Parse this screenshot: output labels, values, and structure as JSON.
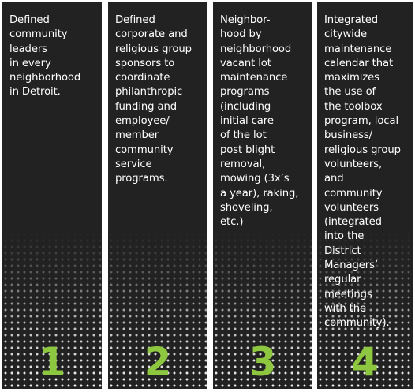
{
  "accent_color": "#8DC63F",
  "panels": [
    {
      "number": "1",
      "text": "Defined\ncommunity\nleaders\nin every\nneighborhood\nin Detroit."
    },
    {
      "number": "2",
      "text": "Defined\ncorporate and\nreligious group\nsponsors to\ncoordinate\nphilanthropic\nfunding and\nemployee/\nmember\ncommunity\nservice\nprograms."
    },
    {
      "number": "3",
      "text": "Neighbor-\nhood by\nneighborhood\nvacant lot\nmaintenance\nprograms\n(including\ninitial care\nof the lot\npost blight\nremoval,\nmowing (3x’s\na year), raking,\nshoveling,\netc.)"
    },
    {
      "number": "4",
      "text": "Integrated\ncitywide\nmaintenance\ncalendar that\nmaximizes\nthe use of\nthe toolbox\nprogram, local\nbusiness/\nreligious group\nvolunteers,\nand\ncommunity\nvolunteers\n(integrated\ninto the\nDistrict\nManagers’\nregular\nmeetings\nwith the\ncommunity)."
    }
  ]
}
